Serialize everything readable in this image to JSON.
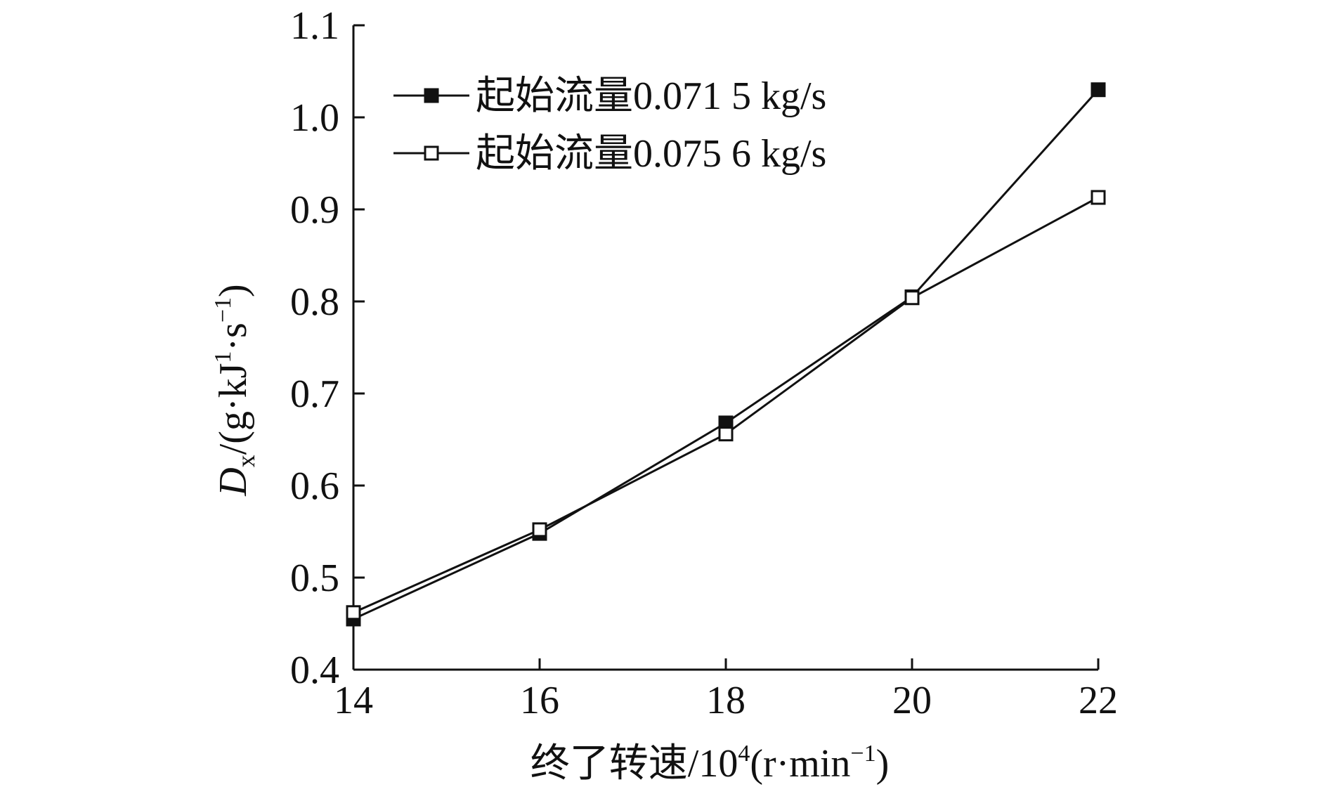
{
  "chart_data": {
    "type": "line",
    "xlabel": "终了转速/10⁴(r·min⁻¹)",
    "ylabel": "Dx/(g·kJ¹·s⁻¹)",
    "xlabel_parts": {
      "prefix": "终了转速/10",
      "exp": "4",
      "mid": "(r·min",
      "exp2": "−1",
      "suffix": ")"
    },
    "ylabel_parts": {
      "symbol": "D",
      "subscript": "x",
      "pre": "/(g·kJ",
      "exp1": "1",
      "mid": "·s",
      "exp2": "−1",
      "suffix": ")"
    },
    "x": [
      14,
      16,
      18,
      20,
      22
    ],
    "xlim": [
      14,
      22
    ],
    "ylim": [
      0.4,
      1.1
    ],
    "xticks": [
      {
        "value": 14,
        "label": "14"
      },
      {
        "value": 16,
        "label": "16"
      },
      {
        "value": 18,
        "label": "18"
      },
      {
        "value": 20,
        "label": "20"
      },
      {
        "value": 22,
        "label": "22"
      }
    ],
    "yticks": [
      {
        "value": 0.4,
        "label": "0.4"
      },
      {
        "value": 0.5,
        "label": "0.5"
      },
      {
        "value": 0.6,
        "label": "0.6"
      },
      {
        "value": 0.7,
        "label": "0.7"
      },
      {
        "value": 0.8,
        "label": "0.8"
      },
      {
        "value": 0.9,
        "label": "0.9"
      },
      {
        "value": 1.0,
        "label": "1.0"
      },
      {
        "value": 1.1,
        "label": "1.1"
      }
    ],
    "grid": false,
    "legend_position": "top-left",
    "series": [
      {
        "name": "起始流量0.071 5 kg/s",
        "marker": "filled-square",
        "color": "#111111",
        "values": [
          0.455,
          0.548,
          0.668,
          0.805,
          1.03
        ]
      },
      {
        "name": "起始流量0.075 6 kg/s",
        "marker": "open-square",
        "color": "#111111",
        "values": [
          0.462,
          0.552,
          0.656,
          0.804,
          0.913
        ]
      }
    ]
  }
}
